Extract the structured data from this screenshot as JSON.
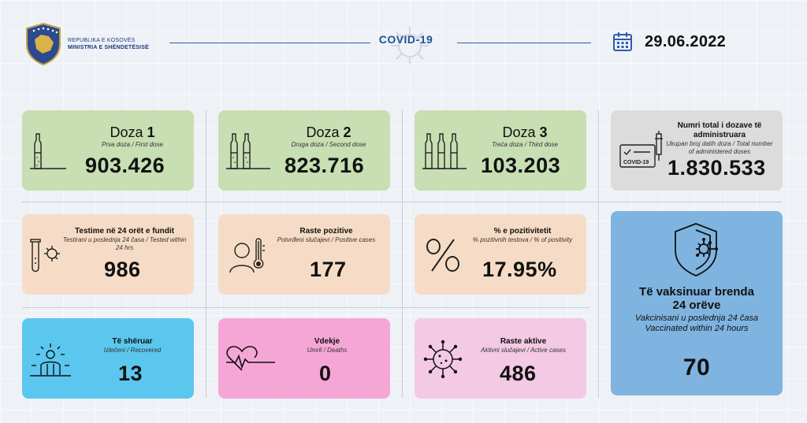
{
  "header": {
    "ministry_line1": "REPUBLIKA E KOSOVËS",
    "ministry_line2": "MINISTRIA E SHËNDETËSISË",
    "title": "COVID-19",
    "date": "29.06.2022"
  },
  "doses": [
    {
      "label_pre": "Doza ",
      "label_num": "1",
      "sub": "Prva doza / First dose",
      "value": "903.426"
    },
    {
      "label_pre": "Doza ",
      "label_num": "2",
      "sub": "Druga doza / Second dose",
      "value": "823.716"
    },
    {
      "label_pre": "Doza ",
      "label_num": "3",
      "sub": "Treća doza / Third dose",
      "value": "103.203"
    }
  ],
  "total": {
    "title": "Numri total i dozave të administruara",
    "sub": "Ukupan broj datih doza / Total number of administered doses",
    "value": "1.830.533",
    "cert_label": "COVID-19"
  },
  "tests": {
    "title": "Testime në 24 orët e fundit",
    "sub": "Testirani u poslednja 24 časa / Tested within 24 hrs",
    "value": "986"
  },
  "positive": {
    "title": "Raste pozitive",
    "sub": "Potvrđeni slučajevi / Positive cases",
    "value": "177"
  },
  "positivity": {
    "title": "% e pozitivitetit",
    "sub": "% pozitivnih testova / % of positivity",
    "value": "17.95%"
  },
  "vaccinated24": {
    "title": "Të vaksinuar brenda 24 orëve",
    "sub": "Vakcinisani u poslednja 24 časa Vaccinated within 24 hours",
    "value": "70"
  },
  "recovered": {
    "title": "Të shëruar",
    "sub": "Izlečeni / Recovered",
    "value": "13"
  },
  "deaths": {
    "title": "Vdekje",
    "sub": "Umrli / Deaths",
    "value": "0"
  },
  "active": {
    "title": "Raste aktive",
    "sub": "Aktivni slučajevi / Active cases",
    "value": "486"
  },
  "colors": {
    "green": "#c8deb3",
    "grey": "#dcdcdc",
    "peach": "#f6dcc6",
    "light_blue": "#5bc7ee",
    "pink": "#f6a6d6",
    "light_pink": "#f3c9e3",
    "blue": "#7fb4e0",
    "brand": "#1f4f9a"
  },
  "icons": [
    "kosovo-coat-of-arms",
    "virus-icon",
    "calendar-icon",
    "ampoule-icon",
    "certificate-syringe-icon",
    "test-tube-icon",
    "fever-person-icon",
    "percent-icon",
    "shield-virus-icon",
    "recovered-person-icon",
    "heartbeat-icon"
  ]
}
